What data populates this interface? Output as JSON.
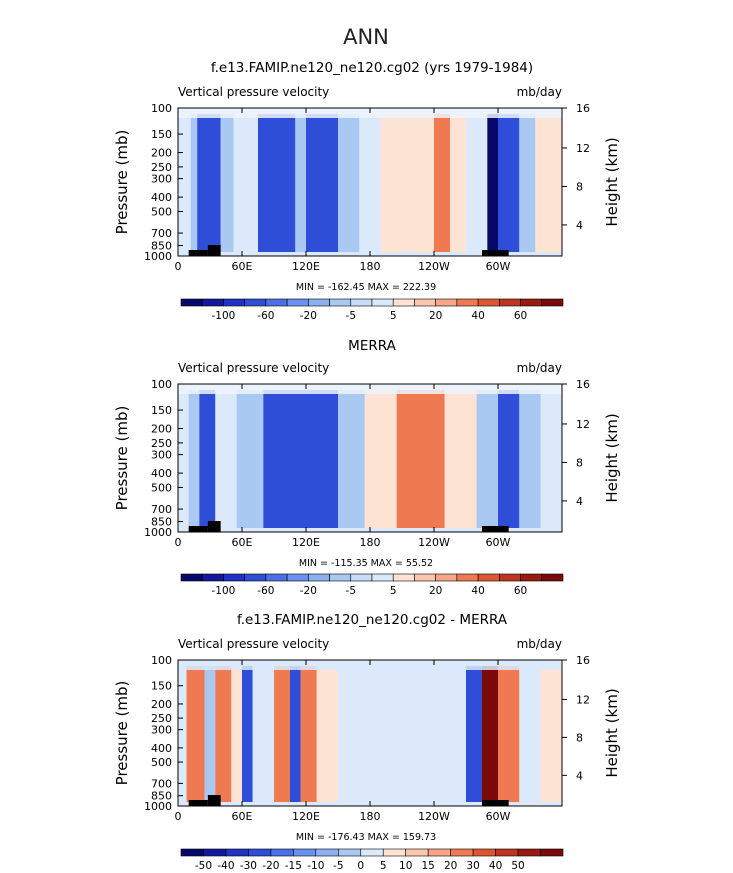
{
  "figure": {
    "title": "ANN"
  },
  "axes": {
    "pressure_label": "Pressure (mb)",
    "height_label": "Height (km)",
    "pressure_ticks": [
      "100",
      "150",
      "200",
      "250",
      "300",
      "400",
      "500",
      "700",
      "850",
      "1000"
    ],
    "height_ticks": [
      "4",
      "8",
      "12",
      "16"
    ],
    "lon_ticks": [
      "0",
      "60E",
      "120E",
      "180",
      "120W",
      "60W"
    ]
  },
  "colors": {
    "dark_blue": "#08086b",
    "mid_blue": "#2f4ed8",
    "light_blue": "#a9c8f2",
    "pale_blue": "#dbe9fb",
    "pale_red": "#fde3d3",
    "orange": "#ef7a52",
    "dark_red": "#7a0a0a",
    "topography": "#000000"
  },
  "chart_data": [
    {
      "type": "heatmap",
      "title": "f.e13.FAMIP.ne120_ne120.cg02 (yrs 1979-1984)",
      "left_label": "Vertical pressure velocity",
      "right_label": "mb/day",
      "stats": "MIN = -162.45   MAX = 222.39",
      "xlim": [
        0,
        360
      ],
      "ylim": [
        1000,
        100
      ],
      "y_scale": "log",
      "colorbar_labels": [
        "-100",
        "-60",
        "-20",
        "-5",
        "5",
        "20",
        "40",
        "60"
      ],
      "colorbar_colors": [
        "#08086b",
        "#12199c",
        "#1f33c4",
        "#2f4ed8",
        "#4a6fe6",
        "#6b91ee",
        "#8db0f1",
        "#a9c8f2",
        "#c5dbf7",
        "#dbe9fb",
        "#fde3d3",
        "#fbc6ad",
        "#f6a686",
        "#ef7a52",
        "#df5533",
        "#c0341f",
        "#9a1a12",
        "#7a0a0a"
      ]
    },
    {
      "type": "heatmap",
      "title": "MERRA",
      "left_label": "Vertical pressure velocity",
      "right_label": "mb/day",
      "stats": "MIN = -115.35   MAX = 55.52",
      "xlim": [
        0,
        360
      ],
      "ylim": [
        1000,
        100
      ],
      "y_scale": "log",
      "colorbar_labels": [
        "-100",
        "-60",
        "-20",
        "-5",
        "5",
        "20",
        "40",
        "60"
      ],
      "colorbar_colors": [
        "#08086b",
        "#12199c",
        "#1f33c4",
        "#2f4ed8",
        "#4a6fe6",
        "#6b91ee",
        "#8db0f1",
        "#a9c8f2",
        "#c5dbf7",
        "#dbe9fb",
        "#fde3d3",
        "#fbc6ad",
        "#f6a686",
        "#ef7a52",
        "#df5533",
        "#c0341f",
        "#9a1a12",
        "#7a0a0a"
      ]
    },
    {
      "type": "heatmap",
      "title": "f.e13.FAMIP.ne120_ne120.cg02 - MERRA",
      "left_label": "Vertical pressure velocity",
      "right_label": "mb/day",
      "stats": "MIN = -176.43   MAX = 159.73",
      "xlim": [
        0,
        360
      ],
      "ylim": [
        1000,
        100
      ],
      "y_scale": "log",
      "colorbar_labels": [
        "-50",
        "-40",
        "-30",
        "-20",
        "-15",
        "-10",
        "-5",
        "0",
        "5",
        "10",
        "15",
        "20",
        "30",
        "40",
        "50"
      ],
      "colorbar_colors": [
        "#08086b",
        "#12199c",
        "#1f33c4",
        "#2f4ed8",
        "#4a6fe6",
        "#6b91ee",
        "#8db0f1",
        "#a9c8f2",
        "#dbe9fb",
        "#fde3d3",
        "#fbc6ad",
        "#f6a686",
        "#ef7a52",
        "#df5533",
        "#c0341f",
        "#9a1a12",
        "#7a0a0a"
      ]
    }
  ]
}
